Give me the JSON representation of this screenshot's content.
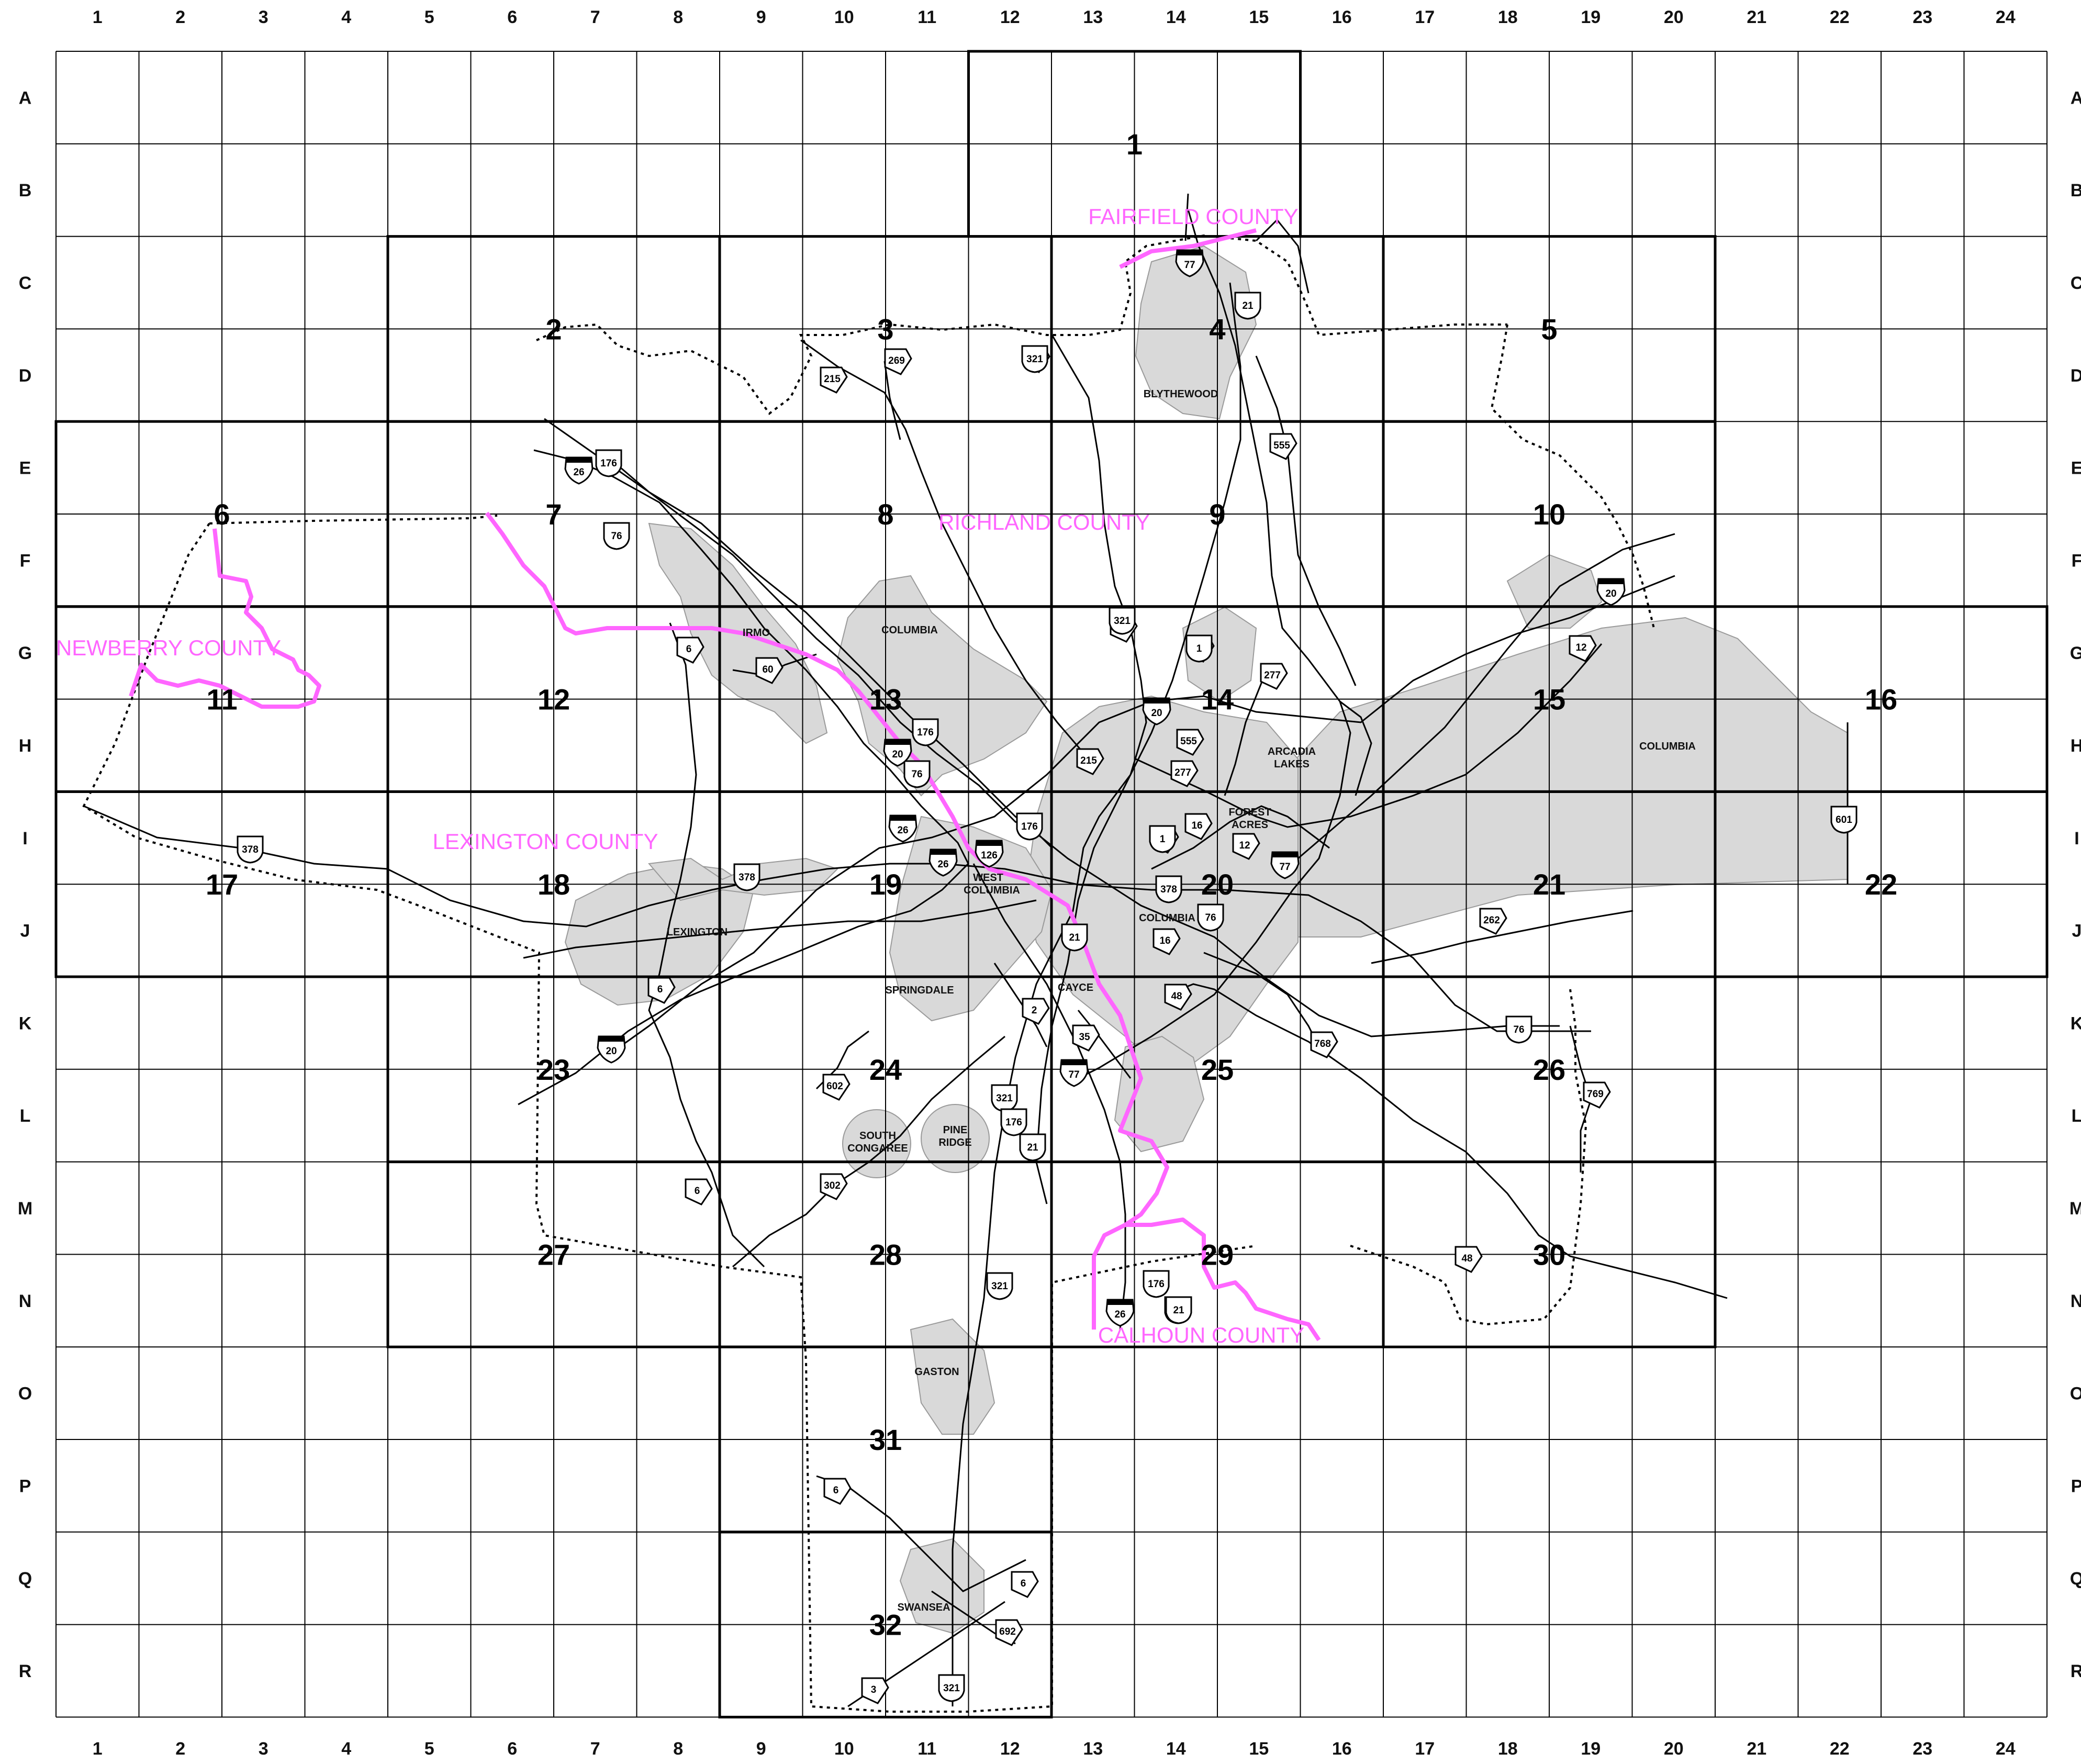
{
  "map": {
    "title": "",
    "grid": {
      "columns": [
        "1",
        "2",
        "3",
        "4",
        "5",
        "6",
        "7",
        "8",
        "9",
        "10",
        "11",
        "12",
        "13",
        "14",
        "15",
        "16",
        "17",
        "18",
        "19",
        "20",
        "21",
        "22",
        "23",
        "24"
      ],
      "rows": [
        "A",
        "B",
        "C",
        "D",
        "E",
        "F",
        "G",
        "H",
        "I",
        "J",
        "K",
        "L",
        "M",
        "N",
        "O",
        "P",
        "Q",
        "R"
      ]
    },
    "page_numbers": [
      {
        "label": "1",
        "cell": "14-B"
      },
      {
        "label": "2",
        "cell": "7-D"
      },
      {
        "label": "3",
        "cell": "11-D"
      },
      {
        "label": "4",
        "cell": "15-D"
      },
      {
        "label": "5",
        "cell": "19-D"
      },
      {
        "label": "6",
        "cell": "3-F"
      },
      {
        "label": "7",
        "cell": "7-F"
      },
      {
        "label": "8",
        "cell": "11-F"
      },
      {
        "label": "9",
        "cell": "15-F"
      },
      {
        "label": "10",
        "cell": "19-F"
      },
      {
        "label": "11",
        "cell": "3-H"
      },
      {
        "label": "12",
        "cell": "7-H"
      },
      {
        "label": "13",
        "cell": "11-H"
      },
      {
        "label": "14",
        "cell": "15-H"
      },
      {
        "label": "15",
        "cell": "19-H"
      },
      {
        "label": "16",
        "cell": "23-H"
      },
      {
        "label": "17",
        "cell": "3-J"
      },
      {
        "label": "18",
        "cell": "7-J"
      },
      {
        "label": "19",
        "cell": "11-J"
      },
      {
        "label": "20",
        "cell": "15-J"
      },
      {
        "label": "21",
        "cell": "19-J"
      },
      {
        "label": "22",
        "cell": "23-J"
      },
      {
        "label": "23",
        "cell": "7-L"
      },
      {
        "label": "24",
        "cell": "11-L"
      },
      {
        "label": "25",
        "cell": "15-L"
      },
      {
        "label": "26",
        "cell": "19-L"
      },
      {
        "label": "27",
        "cell": "7-N"
      },
      {
        "label": "28",
        "cell": "11-N"
      },
      {
        "label": "29",
        "cell": "15-N"
      },
      {
        "label": "30",
        "cell": "19-N"
      },
      {
        "label": "31",
        "cell": "11-P"
      },
      {
        "label": "32",
        "cell": "11-R"
      }
    ],
    "counties": [
      {
        "name": "FAIRFIELD COUNTY",
        "color": "#ff66ff"
      },
      {
        "name": "RICHLAND COUNTY",
        "color": "#ff66ff"
      },
      {
        "name": "NEWBERRY COUNTY",
        "color": "#ff66ff"
      },
      {
        "name": "LEXINGTON COUNTY",
        "color": "#ff66ff"
      },
      {
        "name": "CALHOUN COUNTY",
        "color": "#ff66ff"
      }
    ],
    "places": {
      "blythewood": "BLYTHEWOOD",
      "irmo": "IRMO",
      "columbia_nw": "COLUMBIA",
      "columbia_east": "COLUMBIA",
      "columbia_city": "COLUMBIA",
      "arcadia_lakes_1": "ARCADIA",
      "arcadia_lakes_2": "LAKES",
      "forest_acres_1": "FOREST",
      "forest_acres_2": "ACRES",
      "west_columbia_1": "WEST",
      "west_columbia_2": "COLUMBIA",
      "lexington": "LEXINGTON",
      "springdale": "SPRINGDALE",
      "cayce": "CAYCE",
      "south_congaree_1": "SOUTH",
      "south_congaree_2": "CONGAREE",
      "pine_ridge_1": "PINE",
      "pine_ridge_2": "RIDGE",
      "gaston": "GASTON",
      "swansea": "SWANSEA"
    },
    "interstates": [
      "77",
      "26",
      "20",
      "20",
      "20",
      "26",
      "26",
      "126",
      "77",
      "77",
      "26",
      "20"
    ],
    "us_routes": [
      "21",
      "176",
      "76",
      "1",
      "321",
      "176",
      "76",
      "176",
      "378",
      "1",
      "378",
      "601",
      "76",
      "21",
      "321",
      "176",
      "21",
      "378",
      "76",
      "321",
      "176",
      "21",
      "21",
      "321",
      "321"
    ],
    "state_routes": [
      "269",
      "321",
      "215",
      "555",
      "321",
      "21",
      "277",
      "555",
      "215",
      "277",
      "60",
      "6",
      "16",
      "12",
      "1",
      "12",
      "262",
      "16",
      "48",
      "2",
      "35",
      "768",
      "602",
      "302",
      "6",
      "6",
      "769",
      "48",
      "6",
      "6",
      "692",
      "3"
    ],
    "colors": {
      "urban": "#d9d9d9",
      "grid": "#000000",
      "county_line": "#ff66ff",
      "road": "#000000"
    }
  }
}
